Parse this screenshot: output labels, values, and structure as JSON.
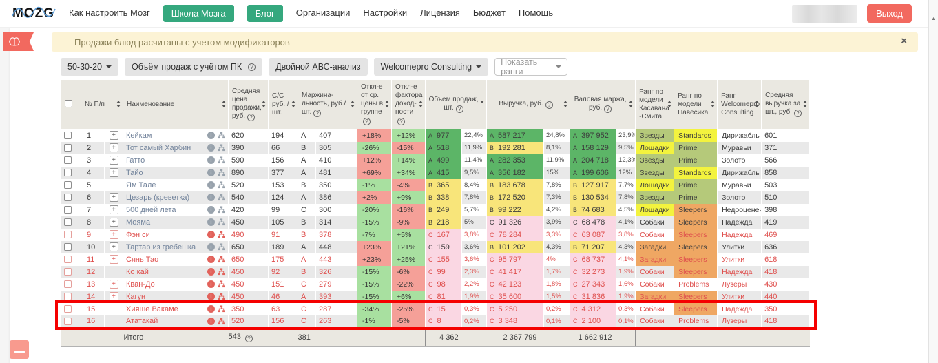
{
  "header": {
    "logo": "MOZG",
    "nav": [
      {
        "label": "Как настроить Мозг",
        "style": "link"
      },
      {
        "label": "Школа Мозга",
        "style": "button"
      },
      {
        "label": "Блог",
        "style": "button"
      },
      {
        "label": "Организации",
        "style": "link"
      },
      {
        "label": "Настройки",
        "style": "link"
      },
      {
        "label": "Лицензия",
        "style": "link"
      },
      {
        "label": "Бюджет",
        "style": "link"
      },
      {
        "label": "Помощь",
        "style": "link"
      }
    ],
    "logout_label": "Выход"
  },
  "notification": {
    "text": "Продажи блюд расчитаны с учетом модификаторов",
    "close": "×"
  },
  "toolbar": {
    "preset_dropdown": "50-30-20",
    "volume_button": "Объём продаж с учётом ПК",
    "abc_button": "Двойной АВС-анализ",
    "company_dropdown": "Welcomepro Consulting",
    "ranks_select_placeholder": "Показать ранги"
  },
  "table": {
    "columns": [
      {
        "label": "№ П/п",
        "help": false,
        "sort": "both"
      },
      {
        "label": "Наименование",
        "help": false,
        "sort": "both"
      },
      {
        "label": "Средняя цена продажи, руб.",
        "help": true,
        "sort": "both"
      },
      {
        "label": "С/С руб. /шт.",
        "help": false,
        "sort": "both"
      },
      {
        "label": "Маржина- льность, руб./шт.",
        "help": true,
        "sort": "both"
      },
      {
        "label": "Откл-е от ср. цены в группе",
        "help": true,
        "sort": "both"
      },
      {
        "label": "Откл-е фактора доход- ности",
        "help": true,
        "sort": "both"
      },
      {
        "label": "Объем продаж, шт.",
        "help": true,
        "sort": "desc"
      },
      {
        "label": "Выручка, руб.",
        "help": true,
        "sort": "both"
      },
      {
        "label": "Валовая маржа, руб.",
        "help": true,
        "sort": "both"
      },
      {
        "label": "Ранг по модели Касавана -Смита",
        "help": false,
        "sort": "both"
      },
      {
        "label": "Ранг по модели Павесика",
        "help": false,
        "sort": "both"
      },
      {
        "label": "Ранг Welcomepro Consulting",
        "help": false,
        "sort": "both"
      },
      {
        "label": "Средняя выручка за шт., руб.",
        "help": true,
        "sort": "both"
      }
    ],
    "rows": [
      {
        "num": "1",
        "name": "Кейкам",
        "has_children": true,
        "alert": false,
        "avg_price": "620",
        "cost": "194",
        "margin_grade": "A",
        "margin": "407",
        "price_deviation": "+18%",
        "profit_deviation": "+12%",
        "volume_grade": "A",
        "volume": "977",
        "volume_pct": "22,4%",
        "revenue_grade": "A",
        "revenue": "587 217",
        "revenue_pct": "24,8%",
        "gross_grade": "A",
        "gross": "397 952",
        "gross_pct": "23,9%",
        "rank_kasavana": "Звезды",
        "rank_pavesic": "Standards",
        "rank_welcomepro": "Дирижабль",
        "avg_revenue": "601"
      },
      {
        "num": "2",
        "name": "Тот самый Харбин",
        "has_children": true,
        "alert": false,
        "avg_price": "390",
        "cost": "66",
        "margin_grade": "B",
        "margin": "305",
        "price_deviation": "-26%",
        "profit_deviation": "-15%",
        "volume_grade": "A",
        "volume": "518",
        "volume_pct": "11,9%",
        "revenue_grade": "B",
        "revenue": "192 281",
        "revenue_pct": "8,1%",
        "gross_grade": "A",
        "gross": "158 129",
        "gross_pct": "9,5%",
        "rank_kasavana": "Лошадки",
        "rank_pavesic": "Prime",
        "rank_welcomepro": "Муравьи",
        "avg_revenue": "371"
      },
      {
        "num": "3",
        "name": "Гатто",
        "has_children": true,
        "alert": false,
        "avg_price": "590",
        "cost": "156",
        "margin_grade": "A",
        "margin": "410",
        "price_deviation": "+12%",
        "profit_deviation": "+14%",
        "volume_grade": "A",
        "volume": "499",
        "volume_pct": "11,4%",
        "revenue_grade": "A",
        "revenue": "282 353",
        "revenue_pct": "11,9%",
        "gross_grade": "A",
        "gross": "204 718",
        "gross_pct": "12,3%",
        "rank_kasavana": "Звезды",
        "rank_pavesic": "Prime",
        "rank_welcomepro": "Золото",
        "avg_revenue": "566"
      },
      {
        "num": "4",
        "name": "Тайо",
        "has_children": true,
        "alert": false,
        "avg_price": "890",
        "cost": "377",
        "margin_grade": "A",
        "margin": "481",
        "price_deviation": "+69%",
        "profit_deviation": "+34%",
        "volume_grade": "A",
        "volume": "415",
        "volume_pct": "9,5%",
        "revenue_grade": "A",
        "revenue": "356 182",
        "revenue_pct": "15%",
        "gross_grade": "A",
        "gross": "199 606",
        "gross_pct": "12%",
        "rank_kasavana": "Звезды",
        "rank_pavesic": "Standards",
        "rank_welcomepro": "Дирижабль",
        "avg_revenue": "858"
      },
      {
        "num": "5",
        "name": "Ям Тале",
        "has_children": false,
        "alert": false,
        "avg_price": "520",
        "cost": "153",
        "margin_grade": "B",
        "margin": "350",
        "price_deviation": "-1%",
        "profit_deviation": "-4%",
        "volume_grade": "B",
        "volume": "365",
        "volume_pct": "8,4%",
        "revenue_grade": "B",
        "revenue": "183 678",
        "revenue_pct": "7,8%",
        "gross_grade": "B",
        "gross": "127 917",
        "gross_pct": "7,7%",
        "rank_kasavana": "Лошадки",
        "rank_pavesic": "Prime",
        "rank_welcomepro": "Муравьи",
        "avg_revenue": "503"
      },
      {
        "num": "6",
        "name": "Цезарь (креветка)",
        "has_children": true,
        "alert": false,
        "avg_price": "540",
        "cost": "124",
        "margin_grade": "A",
        "margin": "386",
        "price_deviation": "+2%",
        "profit_deviation": "+9%",
        "volume_grade": "B",
        "volume": "338",
        "volume_pct": "7,8%",
        "revenue_grade": "B",
        "revenue": "172 520",
        "revenue_pct": "7,3%",
        "gross_grade": "B",
        "gross": "130 534",
        "gross_pct": "7,8%",
        "rank_kasavana": "Звезды",
        "rank_pavesic": "Prime",
        "rank_welcomepro": "Золото",
        "avg_revenue": "510"
      },
      {
        "num": "7",
        "name": "500 дней лета",
        "has_children": true,
        "alert": false,
        "avg_price": "420",
        "cost": "99",
        "margin_grade": "C",
        "margin": "300",
        "price_deviation": "-20%",
        "profit_deviation": "-16%",
        "volume_grade": "B",
        "volume": "249",
        "volume_pct": "5,7%",
        "revenue_grade": "B",
        "revenue": "99 222",
        "revenue_pct": "4,2%",
        "gross_grade": "B",
        "gross": "74 683",
        "gross_pct": "4,5%",
        "rank_kasavana": "Лошадки",
        "rank_pavesic": "Sleepers",
        "rank_welcomepro": "Недооцененные",
        "avg_revenue": "398"
      },
      {
        "num": "8",
        "name": "Мояма",
        "has_children": true,
        "alert": false,
        "avg_price": "450",
        "cost": "105",
        "margin_grade": "B",
        "margin": "314",
        "price_deviation": "-15%",
        "profit_deviation": "-9%",
        "volume_grade": "B",
        "volume": "218",
        "volume_pct": "5%",
        "revenue_grade": "C",
        "revenue": "91 326",
        "revenue_pct": "3,9%",
        "gross_grade": "C",
        "gross": "68 478",
        "gross_pct": "4,1%",
        "rank_kasavana": "Собаки",
        "rank_pavesic": "Sleepers",
        "rank_welcomepro": "Надежда",
        "avg_revenue": "419"
      },
      {
        "num": "9",
        "name": "Фэн си",
        "has_children": true,
        "alert": true,
        "avg_price": "490",
        "cost": "91",
        "margin_grade": "B",
        "margin": "378",
        "price_deviation": "-7%",
        "profit_deviation": "+5%",
        "volume_grade": "C",
        "volume": "167",
        "volume_pct": "3,8%",
        "revenue_grade": "C",
        "revenue": "78 284",
        "revenue_pct": "3,3%",
        "gross_grade": "C",
        "gross": "63 087",
        "gross_pct": "3,8%",
        "rank_kasavana": "Собаки",
        "rank_pavesic": "Sleepers",
        "rank_welcomepro": "Надежда",
        "avg_revenue": "469"
      },
      {
        "num": "10",
        "name": "Тартар из гребешка",
        "has_children": true,
        "alert": false,
        "avg_price": "650",
        "cost": "189",
        "margin_grade": "A",
        "margin": "448",
        "price_deviation": "+23%",
        "profit_deviation": "+21%",
        "volume_grade": "C",
        "volume": "159",
        "volume_pct": "3,6%",
        "revenue_grade": "B",
        "revenue": "101 202",
        "revenue_pct": "4,3%",
        "gross_grade": "B",
        "gross": "71 207",
        "gross_pct": "4,3%",
        "rank_kasavana": "Загадки",
        "rank_pavesic": "Sleepers",
        "rank_welcomepro": "Улитки",
        "avg_revenue": "636"
      },
      {
        "num": "11",
        "name": "Сянь Тао",
        "has_children": true,
        "alert": true,
        "avg_price": "650",
        "cost": "175",
        "margin_grade": "A",
        "margin": "443",
        "price_deviation": "+23%",
        "profit_deviation": "+25%",
        "volume_grade": "C",
        "volume": "155",
        "volume_pct": "3,6%",
        "revenue_grade": "C",
        "revenue": "95 797",
        "revenue_pct": "4%",
        "gross_grade": "C",
        "gross": "68 737",
        "gross_pct": "4,1%",
        "rank_kasavana": "Загадки",
        "rank_pavesic": "Sleepers",
        "rank_welcomepro": "Улитки",
        "avg_revenue": "618"
      },
      {
        "num": "12",
        "name": "Ко кай",
        "has_children": false,
        "alert": true,
        "avg_price": "450",
        "cost": "92",
        "margin_grade": "B",
        "margin": "326",
        "price_deviation": "-15%",
        "profit_deviation": "-6%",
        "volume_grade": "C",
        "volume": "99",
        "volume_pct": "2,3%",
        "revenue_grade": "C",
        "revenue": "41 417",
        "revenue_pct": "1,7%",
        "gross_grade": "C",
        "gross": "32 273",
        "gross_pct": "1,9%",
        "rank_kasavana": "Собаки",
        "rank_pavesic": "Sleepers",
        "rank_welcomepro": "Надежда",
        "avg_revenue": "418"
      },
      {
        "num": "13",
        "name": "Кван-До",
        "has_children": true,
        "alert": true,
        "avg_price": "450",
        "cost": "151",
        "margin_grade": "C",
        "margin": "279",
        "price_deviation": "-15%",
        "profit_deviation": "-22%",
        "volume_grade": "C",
        "volume": "98",
        "volume_pct": "2,2%",
        "revenue_grade": "C",
        "revenue": "42 123",
        "revenue_pct": "1,8%",
        "gross_grade": "C",
        "gross": "27 343",
        "gross_pct": "1,6%",
        "rank_kasavana": "Собаки",
        "rank_pavesic": "Problems",
        "rank_welcomepro": "Лузеры",
        "avg_revenue": "430"
      },
      {
        "num": "14",
        "name": "Кагун",
        "has_children": true,
        "alert": true,
        "avg_price": "450",
        "cost": "46",
        "margin_grade": "A",
        "margin": "393",
        "price_deviation": "-15%",
        "profit_deviation": "+6%",
        "volume_grade": "C",
        "volume": "81",
        "volume_pct": "1,9%",
        "revenue_grade": "C",
        "revenue": "35 600",
        "revenue_pct": "1,5%",
        "gross_grade": "C",
        "gross": "31 836",
        "gross_pct": "1,9%",
        "rank_kasavana": "Загадки",
        "rank_pavesic": "Sleepers",
        "rank_welcomepro": "Улитки",
        "avg_revenue": "440"
      },
      {
        "num": "15",
        "name": "Хияше Вакаме",
        "has_children": false,
        "alert": true,
        "avg_price": "350",
        "cost": "63",
        "margin_grade": "C",
        "margin": "287",
        "price_deviation": "-34%",
        "profit_deviation": "-25%",
        "volume_grade": "C",
        "volume": "15",
        "volume_pct": "0,3%",
        "revenue_grade": "C",
        "revenue": "5 250",
        "revenue_pct": "0,2%",
        "gross_grade": "C",
        "gross": "4 312",
        "gross_pct": "0,3%",
        "rank_kasavana": "Собаки",
        "rank_pavesic": "Sleepers",
        "rank_welcomepro": "Надежда",
        "avg_revenue": "350"
      },
      {
        "num": "16",
        "name": "Ататакай",
        "has_children": false,
        "alert": true,
        "avg_price": "520",
        "cost": "156",
        "margin_grade": "C",
        "margin": "263",
        "price_deviation": "-1%",
        "profit_deviation": "-5%",
        "volume_grade": "C",
        "volume": "8",
        "volume_pct": "0,2%",
        "revenue_grade": "C",
        "revenue": "3 348",
        "revenue_pct": "0,1%",
        "gross_grade": "C",
        "gross": "2 100",
        "gross_pct": "0,1%",
        "rank_kasavana": "Собаки",
        "rank_pavesic": "Problems",
        "rank_welcomepro": "Лузеры",
        "avg_revenue": "418"
      }
    ],
    "footer": {
      "label": "Итого",
      "avg_price": "543",
      "margin": "381",
      "volume": "4 362",
      "revenue": "2 367 799",
      "gross": "1 662 912"
    }
  },
  "highlight": {
    "rows": [
      15,
      16
    ]
  },
  "colors": {
    "accent_green": "#35a87e",
    "accent_coral": "#f2695f",
    "grade_a": "#5cb567",
    "grade_b": "#f8e57a",
    "grade_c": "#fad7e3",
    "deviation_positive_bg": "#f5a098",
    "deviation_negative_bg": "#a8e0a0",
    "rank_olive": "#b5c97a",
    "rank_yellow": "#f3f33e",
    "rank_orange": "#efa763",
    "alert_text": "#df4f4d",
    "annotation_red": "#f50000"
  },
  "rank_bg_map": {
    "Звезды": "olive",
    "Лошадки": "yellow",
    "Собаки": "none",
    "Загадки": "orange",
    "Standards": "yellow",
    "Prime": "olive",
    "Sleepers": "orange",
    "Problems": "none"
  }
}
